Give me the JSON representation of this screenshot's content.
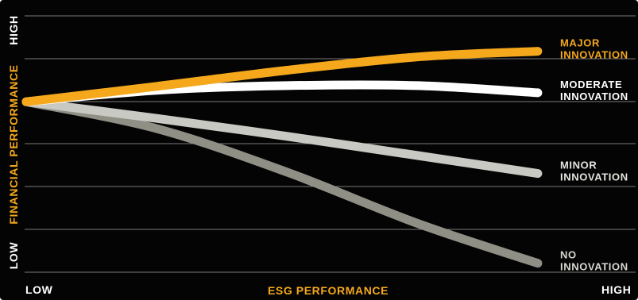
{
  "chart_data": {
    "type": "line",
    "xlabel": "ESG PERFORMANCE",
    "ylabel": "FINANCIAL PERFORMANCE",
    "x_tick_low": "LOW",
    "x_tick_high": "HIGH",
    "y_tick_low": "LOW",
    "y_tick_high": "HIGH",
    "grid": true,
    "legend": "line-end labels",
    "xlim": [
      0,
      1
    ],
    "ylim": [
      0,
      1
    ],
    "series": [
      {
        "name_lines": [
          "MAJOR",
          "INNOVATION"
        ],
        "color": "#f5a81c",
        "label_color": "#f5a81c",
        "points": [
          [
            0,
            0.665
          ],
          [
            0.25,
            0.725
          ],
          [
            0.5,
            0.788
          ],
          [
            0.75,
            0.84
          ],
          [
            0.98,
            0.862
          ]
        ]
      },
      {
        "name_lines": [
          "MODERATE",
          "INNOVATION"
        ],
        "color": "#ffffff",
        "label_color": "#ffffff",
        "points": [
          [
            0,
            0.665
          ],
          [
            0.25,
            0.71
          ],
          [
            0.5,
            0.728
          ],
          [
            0.75,
            0.728
          ],
          [
            0.98,
            0.7
          ]
        ]
      },
      {
        "name_lines": [
          "MINOR",
          "INNOVATION"
        ],
        "color": "#c9c9c3",
        "label_color": "#e4e4e0",
        "points": [
          [
            0,
            0.665
          ],
          [
            0.25,
            0.6
          ],
          [
            0.5,
            0.53
          ],
          [
            0.75,
            0.455
          ],
          [
            0.98,
            0.385
          ]
        ]
      },
      {
        "name_lines": [
          "NO",
          "INNOVATION"
        ],
        "color": "#8f8f86",
        "label_color": "#d8d8d2",
        "points": [
          [
            0,
            0.665
          ],
          [
            0.25,
            0.56
          ],
          [
            0.5,
            0.39
          ],
          [
            0.75,
            0.19
          ],
          [
            0.98,
            0.035
          ]
        ]
      }
    ],
    "colors": {
      "background": "#040404",
      "grid": "#7a7a7a",
      "axis_title": "#f5a81c",
      "tick_text": "#ffffff"
    }
  }
}
